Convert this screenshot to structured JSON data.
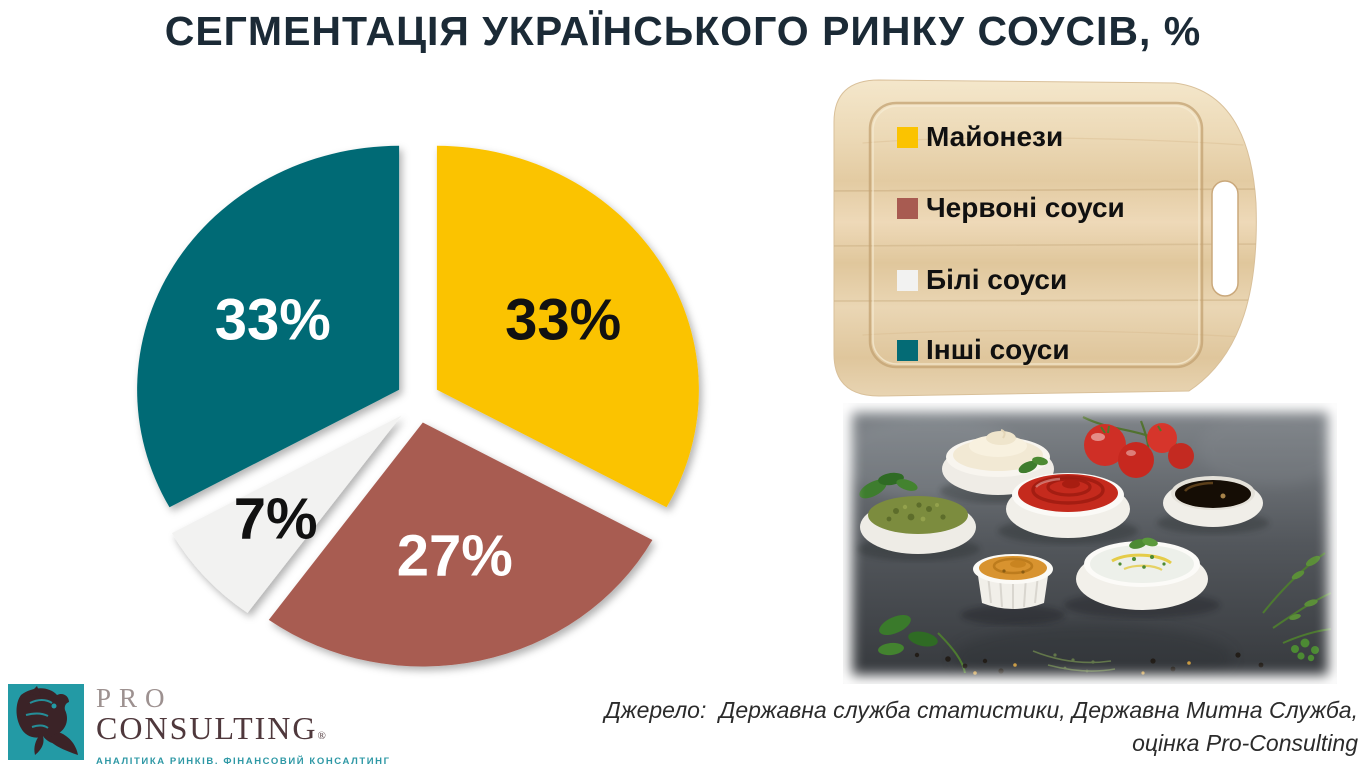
{
  "title": "СЕГМЕНТАЦІЯ УКРАЇНСЬКОГО РИНКУ СОУСІВ, %",
  "chart_data": {
    "type": "pie",
    "title": "СЕГМЕНТАЦІЯ УКРАЇНСЬКОГО РИНКУ СОУСІВ, %",
    "unit": "%",
    "start_angle_deg": 0,
    "direction": "clockwise",
    "exploded": true,
    "legend_position": "right, printed on wooden cutting board",
    "segments": [
      {
        "label": "Майонези",
        "value": 33,
        "display": "33%",
        "color": "#FBC300",
        "text_color": "#111111"
      },
      {
        "label": "Червоні соуси",
        "value": 27,
        "display": "27%",
        "color": "#A85B51",
        "text_color": "#FFFFFF"
      },
      {
        "label": "Білі соуси",
        "value": 7,
        "display": "7%",
        "color": "#F2F2F1",
        "text_color": "#111111"
      },
      {
        "label": "Інші соуси",
        "value": 33,
        "display": "33%",
        "color": "#046B75",
        "text_color": "#FFFFFF"
      }
    ]
  },
  "colors": {
    "title": "#1b2a36",
    "source_text": "#2b2b2b",
    "background": "#ffffff"
  },
  "logo": {
    "pro": "PRO",
    "consulting": "CONSULTING",
    "reg": "®",
    "tagline": "АНАЛІТИКА РИНКІВ. ФІНАНСОВИЙ КОНСАЛТИНГ",
    "colors": {
      "square": "#239aa5",
      "rhino": "#3b2327",
      "pro": "#9d9190",
      "consulting": "#4f383c",
      "tagline": "#2e98a5"
    }
  },
  "source": {
    "line1": "Джерело:  Державна служба статистики, Державна Митна Служба,",
    "line2": "оцінка Pro-Consulting"
  },
  "illustrations": {
    "legend_background": "wooden-cutting-board-photo",
    "photo": "assorted-sauce-bowls-photo (mayonnaise, ketchup, pesto, mustard, soy sauce, white sauce, cherry tomatoes, basil, herbs, peppercorns on dark slate)"
  }
}
